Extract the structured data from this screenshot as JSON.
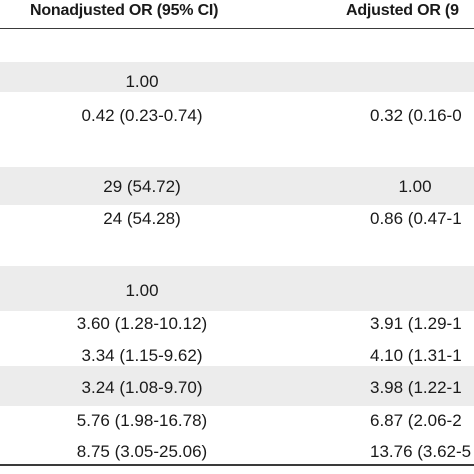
{
  "table": {
    "headers": [
      "Nonadjusted OR (95% CI)",
      "Adjusted OR (9"
    ],
    "rows": [
      {
        "nonadjusted": "1.00",
        "adjusted": ""
      },
      {
        "nonadjusted": "0.42 (0.23-0.74)",
        "adjusted": "0.32 (0.16-0"
      },
      {
        "nonadjusted": "29 (54.72)",
        "adjusted": "1.00"
      },
      {
        "nonadjusted": "24 (54.28)",
        "adjusted": "0.86 (0.47-1"
      },
      {
        "nonadjusted": "1.00",
        "adjusted": ""
      },
      {
        "nonadjusted": "3.60 (1.28-10.12)",
        "adjusted": "3.91 (1.29-1"
      },
      {
        "nonadjusted": "3.34 (1.15-9.62)",
        "adjusted": "4.10 (1.31-1"
      },
      {
        "nonadjusted": "3.24 (1.08-9.70)",
        "adjusted": "3.98 (1.22-1"
      },
      {
        "nonadjusted": "5.76 (1.98-16.78)",
        "adjusted": "6.87 (2.06-2"
      },
      {
        "nonadjusted": "8.75 (3.05-25.06)",
        "adjusted": "13.76 (3.62-5"
      }
    ]
  }
}
